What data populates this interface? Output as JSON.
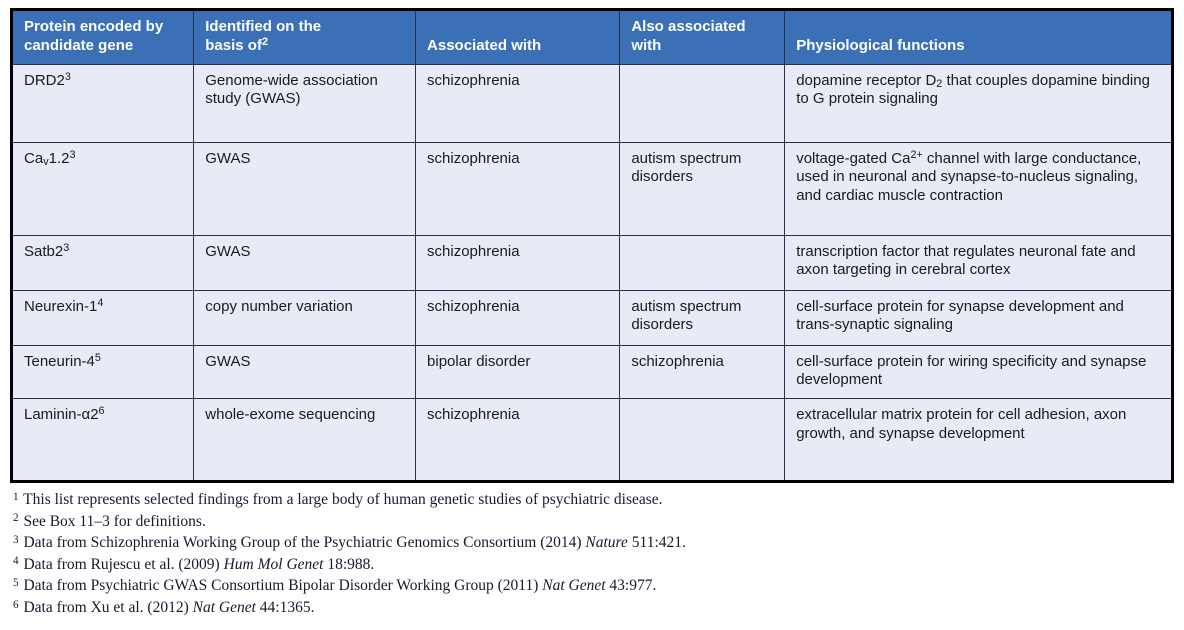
{
  "colors": {
    "header_bg": "#3b70b6",
    "row_bg": "#e8ebf5",
    "grid_line": "#24324f",
    "outer_border": "#000000",
    "header_text": "#ffffff",
    "body_text": "#1a1a1a",
    "footnote_text": "#141b2e"
  },
  "table": {
    "headers": {
      "protein": [
        {
          "t": "Protein encoded by candidate gene"
        }
      ],
      "identified": [
        {
          "t": "Identified on the basis of"
        },
        {
          "t": "2",
          "s": "sup"
        }
      ],
      "associated": [
        {
          "t": "Associated with"
        }
      ],
      "also": [
        {
          "t": "Also associated with"
        }
      ],
      "functions": [
        {
          "t": "Physiological functions"
        }
      ]
    },
    "rows": [
      {
        "protein": [
          {
            "t": "DRD2"
          },
          {
            "t": "3",
            "s": "sup"
          }
        ],
        "identified": [
          {
            "t": "Genome-wide association study (GWAS)"
          }
        ],
        "associated": [
          {
            "t": "schizophrenia"
          }
        ],
        "also": [],
        "functions": [
          {
            "t": "dopamine receptor D"
          },
          {
            "t": "2",
            "s": "sub"
          },
          {
            "t": " that couples dopamine binding to G protein signaling"
          }
        ]
      },
      {
        "protein": [
          {
            "t": "Ca"
          },
          {
            "t": "v",
            "s": "sub"
          },
          {
            "t": "1.2"
          },
          {
            "t": "3",
            "s": "sup"
          }
        ],
        "identified": [
          {
            "t": "GWAS"
          }
        ],
        "associated": [
          {
            "t": "schizophrenia"
          }
        ],
        "also": [
          {
            "t": "autism spectrum disorders"
          }
        ],
        "functions": [
          {
            "t": "voltage-gated Ca"
          },
          {
            "t": "2+",
            "s": "sup"
          },
          {
            "t": " channel with large conductance, used in neuronal and synapse-to-nucleus signaling, and cardiac muscle contraction"
          }
        ]
      },
      {
        "protein": [
          {
            "t": "Satb2"
          },
          {
            "t": "3",
            "s": "sup"
          }
        ],
        "identified": [
          {
            "t": "GWAS"
          }
        ],
        "associated": [
          {
            "t": "schizophrenia"
          }
        ],
        "also": [],
        "functions": [
          {
            "t": "transcription factor that regulates neuronal fate and axon targeting in cerebral cortex"
          }
        ]
      },
      {
        "protein": [
          {
            "t": "Neurexin-1"
          },
          {
            "t": "4",
            "s": "sup"
          }
        ],
        "identified": [
          {
            "t": "copy number variation"
          }
        ],
        "associated": [
          {
            "t": "schizophrenia"
          }
        ],
        "also": [
          {
            "t": "autism spectrum disorders"
          }
        ],
        "functions": [
          {
            "t": "cell-surface protein for synapse development and trans-synaptic signaling"
          }
        ]
      },
      {
        "protein": [
          {
            "t": "Teneurin-4"
          },
          {
            "t": "5",
            "s": "sup"
          }
        ],
        "identified": [
          {
            "t": "GWAS"
          }
        ],
        "associated": [
          {
            "t": "bipolar disorder"
          }
        ],
        "also": [
          {
            "t": "schizophrenia"
          }
        ],
        "functions": [
          {
            "t": "cell-surface protein for wiring specificity and synapse development"
          }
        ]
      },
      {
        "protein": [
          {
            "t": "Laminin-α2"
          },
          {
            "t": "6",
            "s": "sup"
          }
        ],
        "identified": [
          {
            "t": "whole-exome sequencing"
          }
        ],
        "associated": [
          {
            "t": "schizophrenia"
          }
        ],
        "also": [],
        "functions": [
          {
            "t": "extracellular matrix protein for cell adhesion, axon growth, and synapse development"
          }
        ]
      }
    ]
  },
  "footnotes": [
    [
      {
        "t": "1",
        "s": "sup"
      },
      {
        "t": " This list represents selected findings from a large body of human genetic studies of psychiatric disease."
      }
    ],
    [
      {
        "t": "2",
        "s": "sup"
      },
      {
        "t": " See Box 11–3 for definitions."
      }
    ],
    [
      {
        "t": "3",
        "s": "sup"
      },
      {
        "t": " Data from Schizophrenia Working Group of the Psychiatric Genomics Consortium (2014) "
      },
      {
        "t": "Nature",
        "s": "i"
      },
      {
        "t": " 511:421."
      }
    ],
    [
      {
        "t": "4",
        "s": "sup"
      },
      {
        "t": " Data from Rujescu et al. (2009) "
      },
      {
        "t": "Hum Mol Genet",
        "s": "i"
      },
      {
        "t": " 18:988."
      }
    ],
    [
      {
        "t": "5",
        "s": "sup"
      },
      {
        "t": " Data from Psychiatric GWAS Consortium Bipolar Disorder Working Group (2011) "
      },
      {
        "t": "Nat Genet",
        "s": "i"
      },
      {
        "t": " 43:977."
      }
    ],
    [
      {
        "t": "6",
        "s": "sup"
      },
      {
        "t": " Data from Xu et al. (2012) "
      },
      {
        "t": "Nat Genet",
        "s": "i"
      },
      {
        "t": " 44:1365."
      }
    ]
  ]
}
